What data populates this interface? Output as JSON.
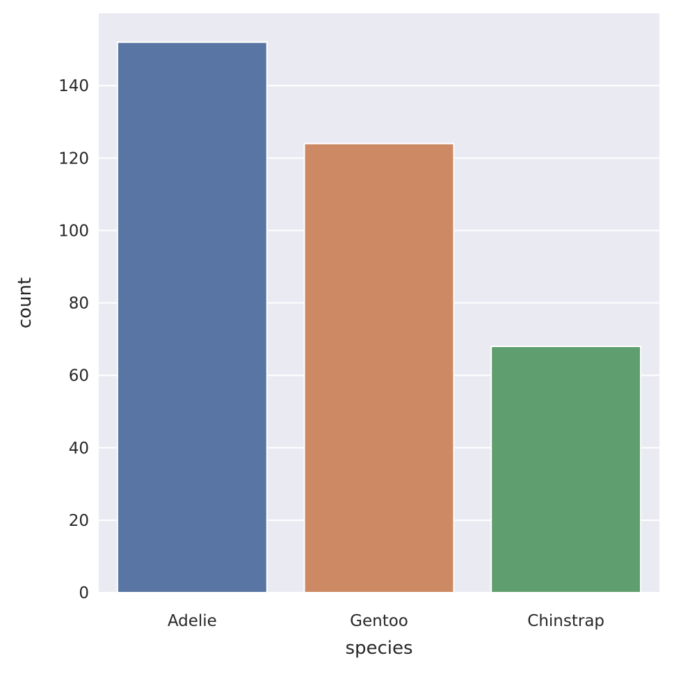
{
  "chart_data": {
    "type": "bar",
    "categories": [
      "Adelie",
      "Gentoo",
      "Chinstrap"
    ],
    "values": [
      152,
      124,
      68
    ],
    "xlabel": "species",
    "ylabel": "count",
    "ylim": [
      0,
      160
    ],
    "yticks": [
      0,
      20,
      40,
      60,
      80,
      100,
      120,
      140
    ],
    "grid": true,
    "colors": [
      "#5975a4",
      "#cc8963",
      "#5f9e6e"
    ],
    "background": "#eaeaf2",
    "grid_color": "#ffffff"
  }
}
